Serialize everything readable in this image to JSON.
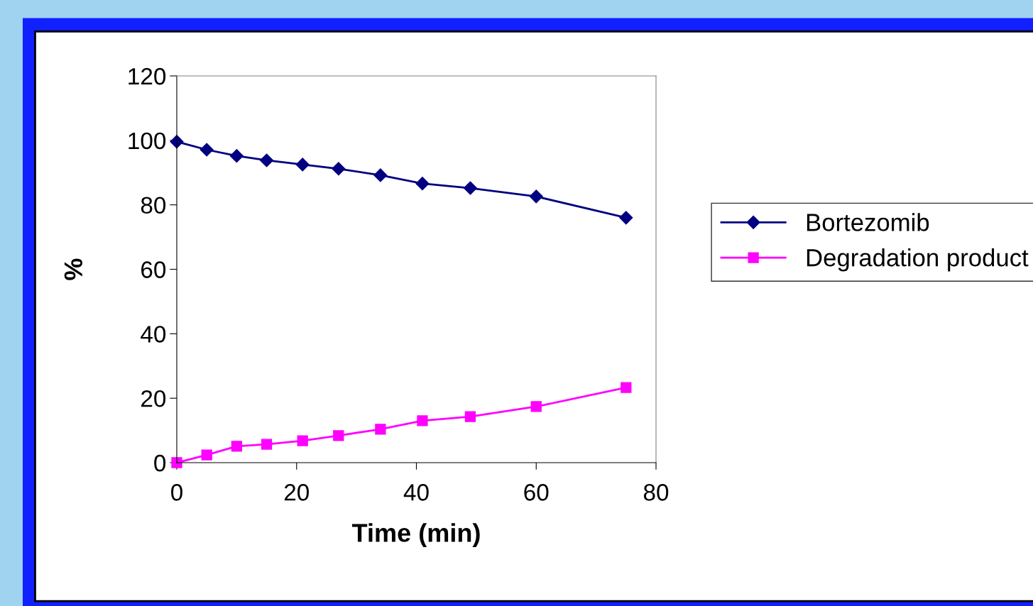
{
  "chart_data": {
    "type": "line",
    "xlabel": "Time (min)",
    "ylabel": "%",
    "x": [
      0,
      5,
      10,
      15,
      21,
      27,
      34,
      41,
      49,
      60,
      75
    ],
    "series": [
      {
        "name": "Bortezomib",
        "color": "#000080",
        "marker": "diamond",
        "values": [
          99.6,
          97.1,
          95.2,
          93.8,
          92.5,
          91.2,
          89.2,
          86.6,
          85.2,
          82.6,
          76.0
        ]
      },
      {
        "name": "Degradation product",
        "color": "#ff00ff",
        "marker": "square",
        "values": [
          0,
          2.4,
          5.1,
          5.7,
          6.8,
          8.4,
          10.4,
          13.0,
          14.3,
          17.4,
          23.3
        ]
      }
    ],
    "xlim": [
      0,
      80
    ],
    "xticks": [
      0,
      20,
      40,
      60,
      80
    ],
    "ylim": [
      0,
      120
    ],
    "yticks": [
      0,
      20,
      40,
      60,
      80,
      100,
      120
    ],
    "grid": false,
    "legend": "right",
    "line_style": "solid"
  }
}
